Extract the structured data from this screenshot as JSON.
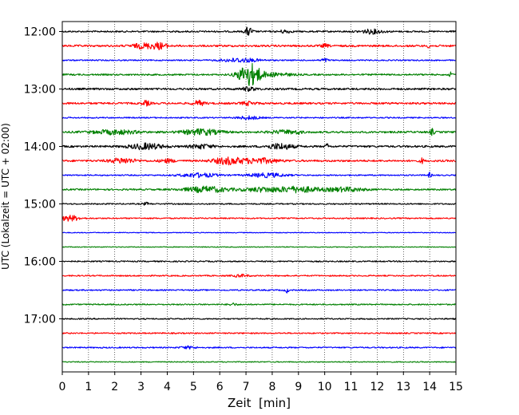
{
  "chart_data": {
    "type": "line",
    "chart_kind": "seismogram-helicorder",
    "title": "",
    "xlabel": "Zeit  [min]",
    "ylabel": "UTC (Lokalzeit = UTC + 02:00)",
    "xlim": [
      0,
      15
    ],
    "x_ticks": [
      "0",
      "1",
      "2",
      "3",
      "4",
      "5",
      "6",
      "7",
      "8",
      "9",
      "10",
      "11",
      "12",
      "13",
      "14",
      "15"
    ],
    "y_ticks": [
      {
        "label": "12:00",
        "row": 0
      },
      {
        "label": "13:00",
        "row": 4
      },
      {
        "label": "14:00",
        "row": 8
      },
      {
        "label": "15:00",
        "row": 12
      },
      {
        "label": "16:00",
        "row": 16
      },
      {
        "label": "17:00",
        "row": 20
      }
    ],
    "row_interval_min": 15,
    "vertical_grid": "dotted",
    "color_cycle": [
      "#000000",
      "#ff0000",
      "#0000ff",
      "#008000"
    ],
    "traces": [
      {
        "start": "12:00",
        "noise": 1.0,
        "events": [
          {
            "t": 7.1,
            "amp": 5.5,
            "dur": 0.1
          },
          {
            "t": 8.5,
            "amp": 2.0,
            "dur": 0.15
          },
          {
            "t": 11.8,
            "amp": 2.5,
            "dur": 0.3
          }
        ]
      },
      {
        "start": "12:15",
        "noise": 1.2,
        "events": [
          {
            "t": 3.1,
            "amp": 3.0,
            "dur": 0.3
          },
          {
            "t": 3.7,
            "amp": 3.5,
            "dur": 0.2
          },
          {
            "t": 10.0,
            "amp": 2.0,
            "dur": 0.1
          },
          {
            "t": 14.0,
            "amp": 3.0,
            "dur": 0.05
          }
        ]
      },
      {
        "start": "12:30",
        "noise": 0.8,
        "events": [
          {
            "t": 6.8,
            "amp": 2.5,
            "dur": 0.5
          },
          {
            "t": 10.0,
            "amp": 2.0,
            "dur": 0.1
          }
        ]
      },
      {
        "start": "12:45",
        "noise": 1.0,
        "events": [
          {
            "t": 7.15,
            "amp": 14.0,
            "dur": 0.3
          },
          {
            "t": 8.2,
            "amp": 2.0,
            "dur": 0.4
          },
          {
            "t": 14.8,
            "amp": 2.5,
            "dur": 0.05
          }
        ]
      },
      {
        "start": "13:00",
        "noise": 1.2,
        "events": [
          {
            "t": 7.1,
            "amp": 2.0,
            "dur": 0.2
          }
        ]
      },
      {
        "start": "13:15",
        "noise": 1.2,
        "events": [
          {
            "t": 3.2,
            "amp": 3.0,
            "dur": 0.1
          },
          {
            "t": 5.2,
            "amp": 3.0,
            "dur": 0.15
          },
          {
            "t": 7.1,
            "amp": 2.0,
            "dur": 0.2
          }
        ]
      },
      {
        "start": "13:30",
        "noise": 0.8,
        "events": [
          {
            "t": 7.1,
            "amp": 2.0,
            "dur": 0.3
          }
        ]
      },
      {
        "start": "13:45",
        "noise": 1.2,
        "events": [
          {
            "t": 2.0,
            "amp": 2.5,
            "dur": 0.6
          },
          {
            "t": 5.3,
            "amp": 3.5,
            "dur": 0.5
          },
          {
            "t": 8.5,
            "amp": 2.0,
            "dur": 0.4
          },
          {
            "t": 9.0,
            "amp": 2.0,
            "dur": 0.05
          },
          {
            "t": 14.1,
            "amp": 4.0,
            "dur": 0.05
          }
        ]
      },
      {
        "start": "14:00",
        "noise": 1.2,
        "events": [
          {
            "t": 3.2,
            "amp": 3.5,
            "dur": 0.45
          },
          {
            "t": 5.3,
            "amp": 2.5,
            "dur": 0.3
          },
          {
            "t": 8.3,
            "amp": 3.5,
            "dur": 0.35
          },
          {
            "t": 10.1,
            "amp": 3.0,
            "dur": 0.05
          }
        ]
      },
      {
        "start": "14:15",
        "noise": 1.2,
        "events": [
          {
            "t": 2.3,
            "amp": 3.0,
            "dur": 0.35
          },
          {
            "t": 4.0,
            "amp": 2.0,
            "dur": 0.2
          },
          {
            "t": 6.3,
            "amp": 4.0,
            "dur": 0.4
          },
          {
            "t": 7.5,
            "amp": 3.0,
            "dur": 0.5
          },
          {
            "t": 13.7,
            "amp": 3.0,
            "dur": 0.05
          }
        ]
      },
      {
        "start": "14:30",
        "noise": 0.8,
        "events": [
          {
            "t": 5.2,
            "amp": 2.5,
            "dur": 0.5
          },
          {
            "t": 7.8,
            "amp": 2.5,
            "dur": 0.5
          },
          {
            "t": 14.0,
            "amp": 3.0,
            "dur": 0.05
          }
        ]
      },
      {
        "start": "14:45",
        "noise": 1.0,
        "events": [
          {
            "t": 5.5,
            "amp": 3.5,
            "dur": 0.6
          },
          {
            "t": 7.6,
            "amp": 2.5,
            "dur": 0.5
          },
          {
            "t": 9.0,
            "amp": 3.5,
            "dur": 0.6
          },
          {
            "t": 10.8,
            "amp": 2.5,
            "dur": 0.5
          }
        ]
      },
      {
        "start": "15:00",
        "noise": 0.8,
        "events": [
          {
            "t": 3.2,
            "amp": 1.5,
            "dur": 0.1
          }
        ]
      },
      {
        "start": "15:15",
        "noise": 0.8,
        "events": [
          {
            "t": 0.3,
            "amp": 3.5,
            "dur": 0.25
          }
        ]
      },
      {
        "start": "15:30",
        "noise": 0.5,
        "events": []
      },
      {
        "start": "15:45",
        "noise": 0.5,
        "events": []
      },
      {
        "start": "16:00",
        "noise": 0.8,
        "events": []
      },
      {
        "start": "16:15",
        "noise": 0.8,
        "events": [
          {
            "t": 6.8,
            "amp": 1.5,
            "dur": 0.2
          }
        ]
      },
      {
        "start": "16:30",
        "noise": 0.8,
        "events": [
          {
            "t": 8.55,
            "amp": 3.0,
            "dur": 0.05
          }
        ]
      },
      {
        "start": "16:45",
        "noise": 0.8,
        "events": [
          {
            "t": 6.5,
            "amp": 1.5,
            "dur": 0.1
          }
        ]
      },
      {
        "start": "17:00",
        "noise": 0.8,
        "events": []
      },
      {
        "start": "17:15",
        "noise": 0.8,
        "events": []
      },
      {
        "start": "17:30",
        "noise": 0.8,
        "events": [
          {
            "t": 4.8,
            "amp": 1.5,
            "dur": 0.2
          }
        ]
      },
      {
        "start": "17:45",
        "noise": 0.6,
        "events": []
      }
    ]
  }
}
